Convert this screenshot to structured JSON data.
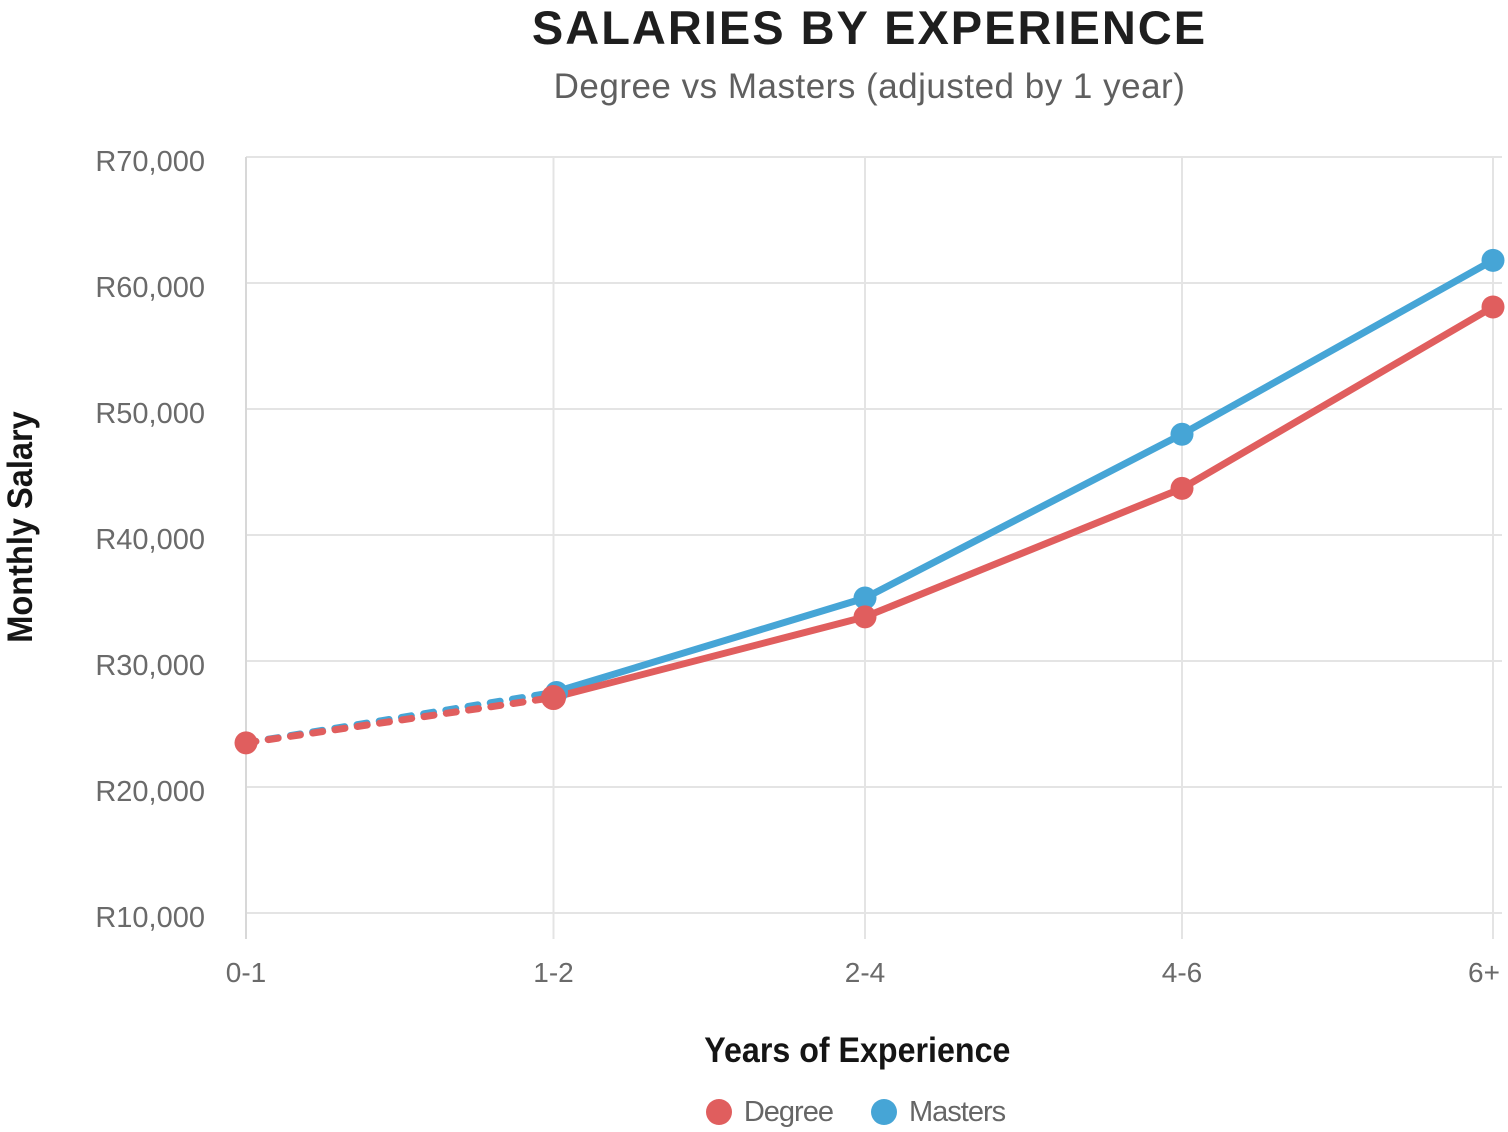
{
  "chart": {
    "title": "SALARIES BY EXPERIENCE",
    "subtitle": "Degree vs Masters (adjusted by 1 year)",
    "xlabel": "Years of Experience",
    "ylabel": "Monthly Salary"
  },
  "chart_data": {
    "type": "line",
    "title": "SALARIES BY EXPERIENCE",
    "subtitle": "Degree vs Masters (adjusted by 1 year)",
    "xlabel": "Years of Experience",
    "ylabel": "Monthly Salary",
    "categories": [
      "0-1",
      "1-2",
      "2-4",
      "4-6",
      "6+"
    ],
    "series": [
      {
        "name": "Degree",
        "color": "#e05e5e",
        "values": [
          23500,
          27100,
          33500,
          43700,
          58100
        ],
        "dashed_segment": {
          "from_index": 0,
          "to_index": 1
        }
      },
      {
        "name": "Masters",
        "color": "#46a5d6",
        "values": [
          null,
          27500,
          35000,
          48000,
          61800
        ],
        "dashed_segment": {
          "from_index": 0,
          "to_index": 1,
          "from_value": 23500
        }
      }
    ],
    "ylim": [
      10000,
      70000
    ],
    "yticks": [
      {
        "label": "R70,000",
        "value": 70000
      },
      {
        "label": "R60,000",
        "value": 60000
      },
      {
        "label": "R50,000",
        "value": 50000
      },
      {
        "label": "R40,000",
        "value": 40000
      },
      {
        "label": "R30,000",
        "value": 30000
      },
      {
        "label": "R20,000",
        "value": 20000
      },
      {
        "label": "R10,000",
        "value": 10000
      }
    ],
    "grid": true,
    "legend_position": "bottom"
  }
}
